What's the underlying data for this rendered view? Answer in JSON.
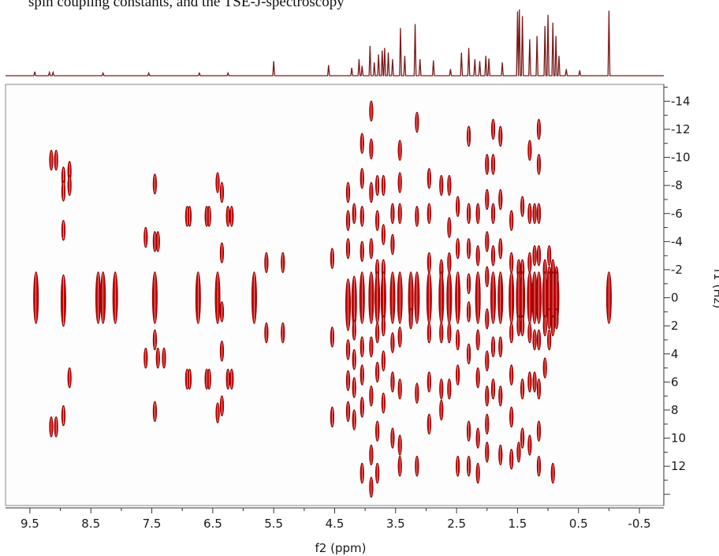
{
  "caption_fragment": "spin coupling constants, and the TSE-J-spectroscopy",
  "chart_data": {
    "type": "scatter",
    "subtype": "2D J-resolved NMR spectrum with 1D projection",
    "xlabel": "f2 (ppm)",
    "ylabel": "f1 (Hz)",
    "xlim": [
      9.9,
      -0.9
    ],
    "ylim": [
      14.8,
      -15.2
    ],
    "x_reversed": true,
    "y_reversed": true,
    "xticks": [
      9.5,
      8.5,
      7.5,
      6.5,
      5.5,
      4.5,
      3.5,
      2.5,
      1.5,
      0.5,
      -0.5
    ],
    "xtick_labels": [
      "9.5",
      "8.5",
      "7.5",
      "6.5",
      "5.5",
      "4.5",
      "3.5",
      "2.5",
      "1.5",
      "0.5",
      "-0.5"
    ],
    "yticks": [
      -14,
      -12,
      -10,
      -8,
      -6,
      -4,
      -2,
      0,
      2,
      4,
      6,
      8,
      10,
      12
    ],
    "ytick_labels": [
      "-14",
      "-12",
      "-10",
      "-8",
      "-6",
      "-4",
      "-2",
      "0",
      "2",
      "4",
      "6",
      "8",
      "10",
      "12"
    ],
    "contour_color": "#c00000",
    "projection_color": "#7a1a1a",
    "projection": [
      [
        9.42,
        0.06
      ],
      [
        9.18,
        0.05
      ],
      [
        9.12,
        0.05
      ],
      [
        8.3,
        0.04
      ],
      [
        7.55,
        0.04
      ],
      [
        6.72,
        0.04
      ],
      [
        6.25,
        0.04
      ],
      [
        5.5,
        0.22
      ],
      [
        4.6,
        0.16
      ],
      [
        4.22,
        0.12
      ],
      [
        4.1,
        0.25
      ],
      [
        4.05,
        0.15
      ],
      [
        3.92,
        0.45
      ],
      [
        3.85,
        0.2
      ],
      [
        3.78,
        0.32
      ],
      [
        3.72,
        0.38
      ],
      [
        3.68,
        0.42
      ],
      [
        3.62,
        0.35
      ],
      [
        3.55,
        0.25
      ],
      [
        3.42,
        0.72
      ],
      [
        3.35,
        0.3
      ],
      [
        3.18,
        0.78
      ],
      [
        3.1,
        0.25
      ],
      [
        2.88,
        0.23
      ],
      [
        2.6,
        0.1
      ],
      [
        2.42,
        0.35
      ],
      [
        2.3,
        0.42
      ],
      [
        2.2,
        0.25
      ],
      [
        2.12,
        0.22
      ],
      [
        2.02,
        0.3
      ],
      [
        1.97,
        0.26
      ],
      [
        1.75,
        0.2
      ],
      [
        1.5,
        0.97
      ],
      [
        1.47,
        1.0
      ],
      [
        1.42,
        0.9
      ],
      [
        1.3,
        0.55
      ],
      [
        1.18,
        0.6
      ],
      [
        1.05,
        0.75
      ],
      [
        1.0,
        0.92
      ],
      [
        0.92,
        0.8
      ],
      [
        0.87,
        0.6
      ],
      [
        0.82,
        0.3
      ],
      [
        0.7,
        0.1
      ],
      [
        0.48,
        0.08
      ],
      [
        0.0,
        0.98
      ]
    ],
    "peaks": [
      {
        "ppm": 9.4,
        "j": [
          0
        ]
      },
      {
        "ppm": 9.15,
        "j": [
          -9.8,
          9.2
        ]
      },
      {
        "ppm": 9.07,
        "j": [
          -9.8,
          9.2
        ]
      },
      {
        "ppm": 8.95,
        "j": [
          -8.6,
          -7.6,
          -4.8,
          0.2,
          8.4
        ]
      },
      {
        "ppm": 8.85,
        "j": [
          -9.0,
          -8.0,
          5.7
        ]
      },
      {
        "ppm": 8.38,
        "j": [
          0
        ]
      },
      {
        "ppm": 8.3,
        "j": [
          0
        ]
      },
      {
        "ppm": 8.1,
        "j": [
          0
        ]
      },
      {
        "ppm": 7.6,
        "j": [
          -4.3,
          4.3
        ]
      },
      {
        "ppm": 7.45,
        "j": [
          -8.1,
          -4.0,
          0,
          3.0,
          8.1
        ]
      },
      {
        "ppm": 7.4,
        "j": [
          -4.0,
          4.3
        ]
      },
      {
        "ppm": 7.3,
        "j": [
          4.3
        ]
      },
      {
        "ppm": 6.92,
        "j": [
          -5.8,
          5.8
        ]
      },
      {
        "ppm": 6.88,
        "j": [
          -5.8,
          5.8
        ]
      },
      {
        "ppm": 6.74,
        "j": [
          0
        ]
      },
      {
        "ppm": 6.6,
        "j": [
          -5.8,
          5.8
        ]
      },
      {
        "ppm": 6.56,
        "j": [
          -5.8,
          5.8
        ]
      },
      {
        "ppm": 6.42,
        "j": [
          -8.2,
          0,
          8.2
        ]
      },
      {
        "ppm": 6.35,
        "j": [
          -7.5,
          -3.2,
          1.0,
          3.8,
          7.7
        ]
      },
      {
        "ppm": 6.25,
        "j": [
          -5.8,
          5.8
        ]
      },
      {
        "ppm": 6.19,
        "j": [
          -5.8,
          5.8
        ]
      },
      {
        "ppm": 5.82,
        "j": [
          0
        ]
      },
      {
        "ppm": 5.62,
        "j": [
          -2.5,
          2.5
        ]
      },
      {
        "ppm": 5.35,
        "j": [
          -2.5,
          2.5
        ]
      },
      {
        "ppm": 4.54,
        "j": [
          -2.8,
          2.8,
          8.5
        ]
      },
      {
        "ppm": 4.28,
        "j": [
          -7.5,
          -5.5,
          -3.5,
          0.5,
          3.7,
          5.9,
          8.1
        ]
      },
      {
        "ppm": 4.18,
        "j": [
          -6.0,
          0.3,
          2.3,
          4.4,
          6.4,
          8.7
        ]
      },
      {
        "ppm": 4.05,
        "j": [
          -11.0,
          -8.5,
          -5.8,
          -3.3,
          0,
          3.5,
          5.5,
          7.8,
          12.5
        ]
      },
      {
        "ppm": 3.9,
        "j": [
          -13.3,
          -10.6,
          -7.5,
          -3.5,
          0,
          3.5,
          7.0,
          11.2,
          13.5
        ]
      },
      {
        "ppm": 3.8,
        "j": [
          -8.0,
          -5.5,
          -2.0,
          0,
          2.5,
          5.3,
          9.5,
          12.5
        ]
      },
      {
        "ppm": 3.7,
        "j": [
          -8.0,
          -4.5,
          -2.0,
          0,
          2.0,
          4.5,
          7.5
        ]
      },
      {
        "ppm": 3.55,
        "j": [
          -6.0,
          -3.8,
          0,
          3.2,
          6.0,
          10.0
        ]
      },
      {
        "ppm": 3.43,
        "j": [
          -10.5,
          -8.2,
          -6.0,
          0,
          2.8,
          6.5,
          10.5,
          12.0
        ]
      },
      {
        "ppm": 3.25,
        "j": [
          0,
          1.5
        ]
      },
      {
        "ppm": 3.15,
        "j": [
          -12.5,
          -5.8,
          0,
          6.8,
          12.0
        ]
      },
      {
        "ppm": 2.95,
        "j": [
          -8.5,
          -6.0,
          -2.5,
          0,
          2.5,
          6.0,
          9.0
        ]
      },
      {
        "ppm": 2.75,
        "j": [
          -8.0,
          -2.0,
          0,
          2.5,
          6.5,
          8.0
        ]
      },
      {
        "ppm": 2.62,
        "j": [
          -8.0,
          -5.0,
          -2.5,
          0,
          2.5,
          6.5
        ]
      },
      {
        "ppm": 2.48,
        "j": [
          -6.5,
          -3.5,
          0,
          3.0,
          5.5,
          12.0
        ]
      },
      {
        "ppm": 2.3,
        "j": [
          -11.5,
          -6.0,
          -3.5,
          -1.0,
          1.0,
          4.0,
          9.5,
          12.0
        ]
      },
      {
        "ppm": 2.15,
        "j": [
          -6.0,
          -3.0,
          0,
          3.0,
          5.7,
          10.0,
          12.5
        ]
      },
      {
        "ppm": 2.0,
        "j": [
          -9.5,
          -7.0,
          -4.0,
          -1.5,
          1.5,
          4.5,
          7.0,
          9.0,
          11.0
        ]
      },
      {
        "ppm": 1.9,
        "j": [
          -12.0,
          -9.5,
          -6.0,
          -3.0,
          0,
          3.5,
          6.5
        ]
      },
      {
        "ppm": 1.78,
        "j": [
          -11.5,
          -7.0,
          -3.5,
          0,
          3.5,
          7.0,
          11.2
        ]
      },
      {
        "ppm": 1.6,
        "j": [
          -5.5,
          -2.5,
          0,
          2.5,
          5.5,
          8.5,
          11.5
        ]
      },
      {
        "ppm": 1.48,
        "j": [
          -2.0,
          0,
          2.0,
          11.0
        ]
      },
      {
        "ppm": 1.42,
        "j": [
          -6.5,
          -2.0,
          0,
          2.0,
          6.5,
          10.0
        ]
      },
      {
        "ppm": 1.3,
        "j": [
          -10.5,
          -6.0,
          -2.5,
          0,
          2.5,
          6.0,
          10.5
        ]
      },
      {
        "ppm": 1.22,
        "j": [
          -6.0,
          -3.0,
          0,
          3.0,
          6.0
        ]
      },
      {
        "ppm": 1.15,
        "j": [
          -12.0,
          -9.5,
          -6.0,
          -3.0,
          0,
          3.0,
          6.5,
          9.5,
          12.0
        ]
      },
      {
        "ppm": 1.05,
        "j": [
          -2.0,
          0,
          2.0,
          5.0
        ]
      },
      {
        "ppm": 0.98,
        "j": [
          -3.0,
          -1.5,
          0,
          1.5,
          3.0
        ]
      },
      {
        "ppm": 0.92,
        "j": [
          -2.0,
          0,
          2.0,
          12.5
        ]
      },
      {
        "ppm": 0.86,
        "j": [
          -1.5,
          0,
          1.5
        ]
      },
      {
        "ppm": 0.0,
        "j": [
          0
        ]
      }
    ]
  }
}
